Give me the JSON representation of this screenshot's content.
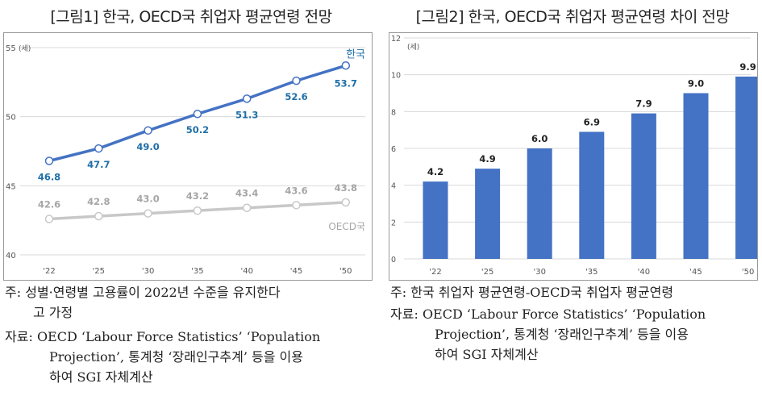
{
  "charts": [
    {
      "title": "[그림1] 한국, OECD국 취업자 평균연령 전망",
      "chart_data": {
        "type": "line",
        "categories": [
          "'22",
          "'25",
          "'30",
          "'35",
          "'40",
          "'45",
          "'50"
        ],
        "series": [
          {
            "name": "한국",
            "values": [
              46.8,
              47.7,
              49.0,
              50.2,
              51.3,
              52.6,
              53.7
            ],
            "color": "#4472c4",
            "label_color": "#1f6fa8"
          },
          {
            "name": "OECD국",
            "values": [
              42.6,
              42.8,
              43.0,
              43.2,
              43.4,
              43.6,
              43.8
            ],
            "color": "#c8c8c8",
            "label_color": "#a6a6a6"
          }
        ],
        "ylim": [
          40,
          55
        ],
        "yticks": [
          40,
          45,
          50,
          55
        ],
        "yunit": "(세)",
        "grid": true
      }
    },
    {
      "title": "[그림2] 한국, OECD국 취업자 평균연령 차이 전망",
      "chart_data": {
        "type": "bar",
        "categories": [
          "'22",
          "'25",
          "'30",
          "'35",
          "'40",
          "'45",
          "'50"
        ],
        "values": [
          4.2,
          4.9,
          6.0,
          6.9,
          7.9,
          9.0,
          9.9
        ],
        "ylim": [
          0,
          12
        ],
        "yticks": [
          0,
          2,
          4,
          6,
          8,
          10,
          12
        ],
        "yunit": "(세)",
        "color": "#4472c4",
        "grid": true
      }
    }
  ],
  "notes": {
    "left": {
      "note_label": "주:",
      "note_lines": [
        "성별·연령별 고용률이 2022년 수준을 유지한다",
        "고 가정"
      ],
      "source_label": "자료:",
      "source_lines": [
        "OECD ‘Labour Force Statistics’ ‘Population",
        "Projection’, 통계청 ‘장래인구추계’ 등을 이용",
        "하여 SGI 자체계산"
      ]
    },
    "right": {
      "note_label": "주:",
      "note_lines": [
        "한국 취업자 평균연령-OECD국 취업자 평균연령"
      ],
      "source_label": "자료:",
      "source_lines": [
        "OECD ‘Labour Force Statistics’ ‘Population",
        "Projection’, 통계청 ‘장래인구추계’ 등을 이용",
        "하여 SGI 자체계산"
      ]
    }
  }
}
